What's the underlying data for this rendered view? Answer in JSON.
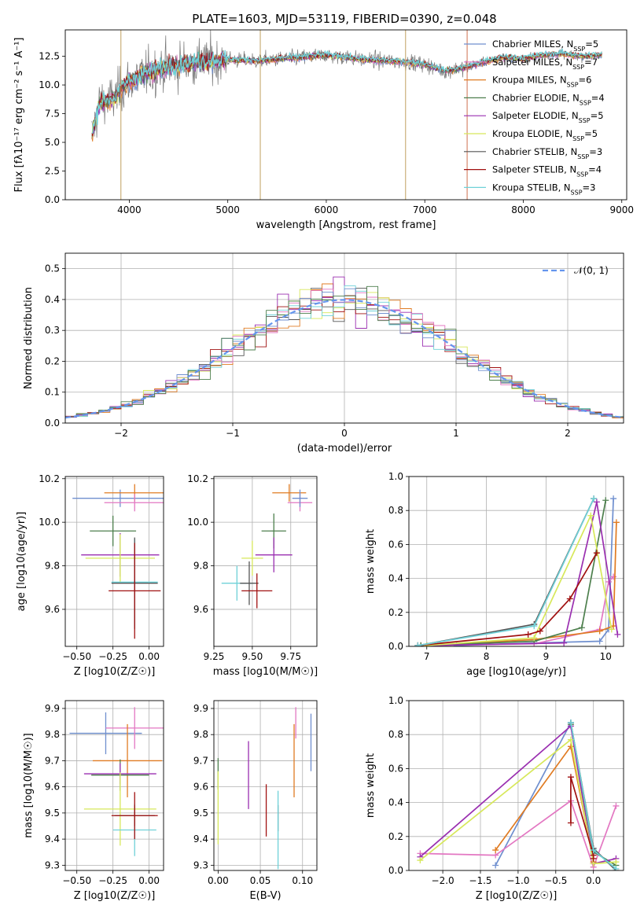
{
  "title": "PLATE=1603, MJD=53119, FIBERID=0390, z=0.048",
  "colors": {
    "c1": "#6f8fcf",
    "c2": "#e377c2",
    "c3": "#e07b22",
    "c4": "#4d7f4d",
    "c5": "#9a2fb0",
    "c6": "#d7e85a",
    "c7": "#555555",
    "c8": "#a01010",
    "c9": "#6fd1d8",
    "model": "#777777",
    "normal": "#6495ED"
  },
  "chart_data": [
    {
      "id": "spectrum",
      "type": "line",
      "xlabel": "wavelength [Angstrom, rest frame]",
      "ylabel": "Flux [fλ10⁻¹⁷ erg cm⁻² s⁻¹ A⁻¹]",
      "xlim": [
        3350,
        9050
      ],
      "ylim": [
        0,
        14.8
      ],
      "xticks": [
        "4000",
        "5000",
        "6000",
        "7000",
        "8000",
        "9000"
      ],
      "yticks": [
        "0.0",
        "2.5",
        "5.0",
        "7.5",
        "10.0",
        "12.5"
      ],
      "legend_position": "upper right",
      "legend": [
        "Chabrier MILES, N_SSP=5",
        "Salpeter MILES, N_SSP=7",
        "Kroupa MILES, N_SSP=6",
        "Chabrier ELODIE, N_SSP=4",
        "Salpeter ELODIE, N_SSP=5",
        "Kroupa ELODIE, N_SSP=5",
        "Chabrier STELIB, N_SSP=3",
        "Salpeter STELIB, N_SSP=4",
        "Kroupa STELIB, N_SSP=3"
      ],
      "legend_colors": [
        "c1",
        "c2",
        "c3",
        "c4",
        "c5",
        "c6",
        "c7",
        "c8",
        "c9"
      ],
      "data_range_x": [
        3620,
        8800
      ],
      "continuum": [
        [
          3620,
          5.5
        ],
        [
          3700,
          8.5
        ],
        [
          3850,
          8.8
        ],
        [
          3950,
          10.0
        ],
        [
          4100,
          10.8
        ],
        [
          4400,
          11.6
        ],
        [
          4700,
          12.0
        ],
        [
          5000,
          12.2
        ],
        [
          5300,
          12.1
        ],
        [
          5600,
          12.3
        ],
        [
          6000,
          12.6
        ],
        [
          6400,
          12.2
        ],
        [
          6800,
          12.0
        ],
        [
          7000,
          11.8
        ],
        [
          7200,
          11.2
        ],
        [
          7400,
          11.5
        ],
        [
          7600,
          12.0
        ],
        [
          7800,
          12.4
        ],
        [
          8000,
          12.3
        ],
        [
          8200,
          12.6
        ],
        [
          8400,
          12.7
        ],
        [
          8600,
          12.5
        ],
        [
          8800,
          12.6
        ]
      ],
      "drop_lines_x": [
        3915,
        5330,
        6805,
        7430
      ]
    },
    {
      "id": "residuals",
      "type": "histogram",
      "xlabel": "(data-model)/error",
      "ylabel": "Normed distribution",
      "xlim": [
        -2.5,
        2.5
      ],
      "ylim": [
        0,
        0.55
      ],
      "xticks": [
        "−2",
        "−1",
        "0",
        "1",
        "2"
      ],
      "yticks": [
        "0.0",
        "0.1",
        "0.2",
        "0.3",
        "0.4",
        "0.5"
      ],
      "legend": [
        "𝒩(0, 1)"
      ],
      "bin_width": 0.1,
      "bin_start": -2.5,
      "hist_colors": [
        "c7",
        "c3",
        "c5",
        "c6",
        "c8",
        "c9",
        "c2",
        "c1",
        "c4"
      ]
    },
    {
      "id": "age-vs-z",
      "type": "errorbar",
      "xlabel": "Z [log10(Z/Z☉)]",
      "ylabel": "age  [log10(age/yr)]",
      "xlim": [
        -0.58,
        0.1
      ],
      "ylim": [
        9.43,
        10.21
      ],
      "xticks": [
        "−0.50",
        "−0.25",
        "0.00"
      ],
      "yticks": [
        "9.6",
        "9.8",
        "10.0",
        "10.2"
      ],
      "points": [
        {
          "c": "c1",
          "x": -0.2,
          "xerr": 0.33,
          "y": 10.11,
          "yerr": 0.04
        },
        {
          "c": "c3",
          "x": -0.1,
          "xerr": 0.21,
          "y": 10.135,
          "yerr": 0.04
        },
        {
          "c": "c2",
          "x": -0.1,
          "xerr": 0.21,
          "y": 10.09,
          "yerr": 0.04
        },
        {
          "c": "c4",
          "x": -0.25,
          "xerr": 0.16,
          "y": 9.96,
          "yerr": 0.07
        },
        {
          "c": "c5",
          "x": -0.2,
          "xerr": 0.27,
          "y": 9.85,
          "yerr": 0.1
        },
        {
          "c": "c6",
          "x": -0.2,
          "xerr": 0.24,
          "y": 9.835,
          "yerr": 0.11
        },
        {
          "c": "c9",
          "x": -0.1,
          "xerr": 0.16,
          "y": 9.725,
          "yerr": 0.2
        },
        {
          "c": "c7",
          "x": -0.1,
          "xerr": 0.16,
          "y": 9.72,
          "yerr": 0.21
        },
        {
          "c": "c8",
          "x": -0.1,
          "xerr": 0.18,
          "y": 9.685,
          "yerr": 0.22
        }
      ]
    },
    {
      "id": "age-vs-mass",
      "type": "errorbar",
      "xlabel": "mass [log10(M/M☉)]",
      "xlim": [
        9.25,
        9.92
      ],
      "ylim": [
        9.43,
        10.21
      ],
      "xticks": [
        "9.25",
        "9.50",
        "9.75"
      ],
      "yticks": [
        "9.6",
        "9.8",
        "10.0",
        "10.2"
      ],
      "points": [
        {
          "c": "c3",
          "x": 9.74,
          "xerr": 0.11,
          "y": 10.135,
          "yerr": 0.04
        },
        {
          "c": "c2",
          "x": 9.81,
          "xerr": 0.08,
          "y": 10.09,
          "yerr": 0.04
        },
        {
          "c": "c1",
          "x": 9.81,
          "xerr": 0.05,
          "y": 10.11,
          "yerr": 0.04
        },
        {
          "c": "c4",
          "x": 9.64,
          "xerr": 0.08,
          "y": 9.96,
          "yerr": 0.08
        },
        {
          "c": "c5",
          "x": 9.64,
          "xerr": 0.12,
          "y": 9.85,
          "yerr": 0.08
        },
        {
          "c": "c6",
          "x": 9.5,
          "xerr": 0.07,
          "y": 9.835,
          "yerr": 0.08
        },
        {
          "c": "c9",
          "x": 9.4,
          "xerr": 0.1,
          "y": 9.72,
          "yerr": 0.08
        },
        {
          "c": "c7",
          "x": 9.48,
          "xerr": 0.06,
          "y": 9.72,
          "yerr": 0.1
        },
        {
          "c": "c8",
          "x": 9.53,
          "xerr": 0.1,
          "y": 9.685,
          "yerr": 0.08
        }
      ]
    },
    {
      "id": "weight-vs-age",
      "type": "line",
      "xlabel": "age  [log10(age/yr)]",
      "ylabel": "mass weight",
      "xlim": [
        6.7,
        10.3
      ],
      "ylim": [
        0,
        1.0
      ],
      "xticks": [
        "7",
        "8",
        "9",
        "10"
      ],
      "yticks": [
        "0.0",
        "0.2",
        "0.4",
        "0.6",
        "0.8",
        "1.0"
      ],
      "series": [
        {
          "c": "c1",
          "x": [
            7.5,
            8.8,
            9.9,
            10.05,
            10.13
          ],
          "y": [
            0.005,
            0.02,
            0.03,
            0.1,
            0.87
          ]
        },
        {
          "c": "c2",
          "x": [
            6.9,
            8.8,
            9.9,
            10.05,
            10.13
          ],
          "y": [
            0.005,
            0.015,
            0.1,
            0.38,
            0.41
          ]
        },
        {
          "c": "c3",
          "x": [
            6.9,
            8.8,
            9.9,
            10.13,
            10.18
          ],
          "y": [
            0.005,
            0.04,
            0.09,
            0.12,
            0.73
          ]
        },
        {
          "c": "c4",
          "x": [
            6.9,
            8.8,
            9.6,
            10.0
          ],
          "y": [
            0.005,
            0.03,
            0.11,
            0.86
          ]
        },
        {
          "c": "c5",
          "x": [
            7.0,
            9.3,
            9.85,
            10.2
          ],
          "y": [
            0.005,
            0.02,
            0.85,
            0.07
          ]
        },
        {
          "c": "c6",
          "x": [
            7.0,
            8.8,
            9.75,
            10.1
          ],
          "y": [
            0.005,
            0.05,
            0.77,
            0.1
          ]
        },
        {
          "c": "c7",
          "x": [
            6.85,
            8.8,
            9.8
          ],
          "y": [
            0.005,
            0.13,
            0.87
          ]
        },
        {
          "c": "c8",
          "x": [
            6.85,
            8.7,
            8.9,
            9.4,
            9.85
          ],
          "y": [
            0.005,
            0.07,
            0.09,
            0.28,
            0.55
          ]
        },
        {
          "c": "c9",
          "x": [
            6.85,
            8.8,
            9.8
          ],
          "y": [
            0.005,
            0.12,
            0.87
          ]
        }
      ]
    },
    {
      "id": "mass-vs-z",
      "type": "errorbar",
      "xlabel": "Z [log10(Z/Z☉)]",
      "ylabel": "mass [log10(M/M☉)]",
      "xlim": [
        -0.58,
        0.1
      ],
      "ylim": [
        9.28,
        9.93
      ],
      "xticks": [
        "−0.50",
        "−0.25",
        "0.00"
      ],
      "yticks": [
        "9.3",
        "9.4",
        "9.5",
        "9.6",
        "9.7",
        "9.8",
        "9.9"
      ],
      "points": [
        {
          "c": "c1",
          "x": -0.3,
          "xerr": 0.25,
          "y": 9.805,
          "yerr": 0.08
        },
        {
          "c": "c2",
          "x": -0.1,
          "xerr": 0.2,
          "y": 9.825,
          "yerr": 0.08
        },
        {
          "c": "c3",
          "x": -0.15,
          "xerr": 0.24,
          "y": 9.7,
          "yerr": 0.14
        },
        {
          "c": "c4",
          "x": -0.2,
          "xerr": 0.2,
          "y": 9.645,
          "yerr": 0.06
        },
        {
          "c": "c5",
          "x": -0.2,
          "xerr": 0.25,
          "y": 9.65,
          "yerr": 0.04
        },
        {
          "c": "c6",
          "x": -0.2,
          "xerr": 0.25,
          "y": 9.515,
          "yerr": 0.14
        },
        {
          "c": "c9",
          "x": -0.1,
          "xerr": 0.15,
          "y": 9.435,
          "yerr": 0.1
        },
        {
          "c": "c7",
          "x": -0.1,
          "xerr": 0.14,
          "y": 9.49,
          "yerr": 0.04
        },
        {
          "c": "c8",
          "x": -0.1,
          "xerr": 0.16,
          "y": 9.49,
          "yerr": 0.09
        }
      ]
    },
    {
      "id": "mass-vs-ebv",
      "type": "errorbar",
      "xlabel": "E(B-V)",
      "xlim": [
        -0.005,
        0.117
      ],
      "ylim": [
        9.28,
        9.93
      ],
      "xticks": [
        "0.00",
        "0.05",
        "0.10"
      ],
      "yticks": [
        "9.3",
        "9.4",
        "9.5",
        "9.6",
        "9.7",
        "9.8",
        "9.9"
      ],
      "points": [
        {
          "c": "c1",
          "x": 0.11,
          "y": 9.77,
          "yerr": 0.11
        },
        {
          "c": "c2",
          "x": 0.092,
          "y": 9.845,
          "yerr": 0.06
        },
        {
          "c": "c3",
          "x": 0.09,
          "y": 9.7,
          "yerr": 0.14
        },
        {
          "c": "c4",
          "x": 0.0,
          "y": 9.65,
          "yerr": 0.06
        },
        {
          "c": "c5",
          "x": 0.036,
          "y": 9.645,
          "yerr": 0.13
        },
        {
          "c": "c6",
          "x": 0.0,
          "y": 9.52,
          "yerr": 0.14
        },
        {
          "c": "c8",
          "x": 0.057,
          "y": 9.51,
          "yerr": 0.1
        },
        {
          "c": "c7",
          "x": 0.071,
          "y": 9.48,
          "yerr": 0.05
        },
        {
          "c": "c9",
          "x": 0.071,
          "y": 9.435,
          "yerr": 0.15
        }
      ]
    },
    {
      "id": "weight-vs-z",
      "type": "line",
      "xlabel": "Z [log10(Z/Z☉)]",
      "ylabel": "mass weight",
      "xlim": [
        -2.45,
        0.4
      ],
      "ylim": [
        0,
        1.0
      ],
      "xticks": [
        "−2.0",
        "−1.5",
        "−1.0",
        "−0.5",
        "0.0"
      ],
      "yticks": [
        "0.0",
        "0.2",
        "0.4",
        "0.6",
        "0.8",
        "1.0"
      ],
      "series": [
        {
          "c": "c1",
          "x": [
            -1.3,
            -0.3,
            0.0
          ],
          "y": [
            0.03,
            0.87,
            0.1
          ]
        },
        {
          "c": "c2",
          "x": [
            -2.3,
            -1.3,
            -0.3,
            0.0,
            0.3
          ],
          "y": [
            0.1,
            0.09,
            0.41,
            0.02,
            0.38
          ]
        },
        {
          "c": "c3",
          "x": [
            -1.3,
            -0.3,
            0.0
          ],
          "y": [
            0.12,
            0.73,
            0.05
          ]
        },
        {
          "c": "c4",
          "x": [
            -0.3,
            0.0,
            0.3
          ],
          "y": [
            0.86,
            0.11,
            0.03
          ]
        },
        {
          "c": "c5",
          "x": [
            -2.3,
            -0.3,
            0.0,
            0.3
          ],
          "y": [
            0.08,
            0.85,
            0.04,
            0.07
          ]
        },
        {
          "c": "c6",
          "x": [
            -2.3,
            -0.3,
            0.0,
            0.3
          ],
          "y": [
            0.06,
            0.77,
            0.04,
            0.05
          ]
        },
        {
          "c": "c7",
          "x": [
            -0.3,
            0.0,
            0.3
          ],
          "y": [
            0.87,
            0.13,
            0.0
          ]
        },
        {
          "c": "c8",
          "x": [
            -0.3,
            -0.3,
            0.0,
            0.0
          ],
          "y": [
            0.28,
            0.55,
            0.09,
            0.07
          ]
        },
        {
          "c": "c9",
          "x": [
            -0.3,
            0.0,
            0.3
          ],
          "y": [
            0.87,
            0.12,
            0.01
          ]
        }
      ]
    }
  ]
}
